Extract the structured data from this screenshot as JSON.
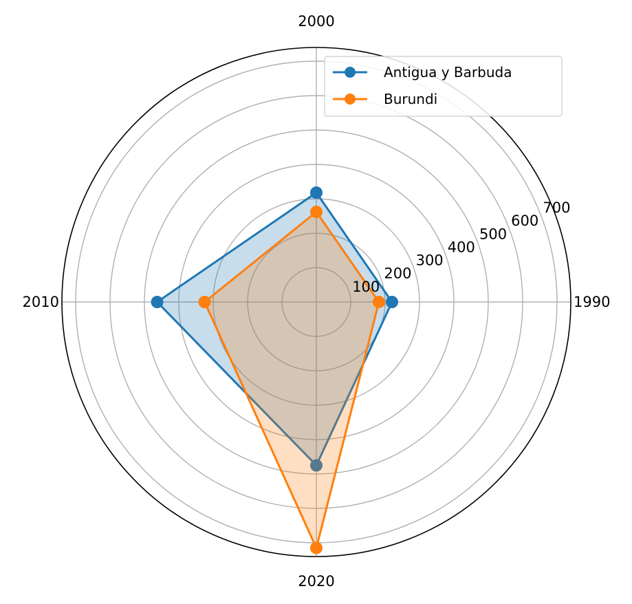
{
  "chart_data": {
    "type": "radar",
    "categories": [
      "1990",
      "2000",
      "2010",
      "2020"
    ],
    "radial_ticks": [
      "100",
      "200",
      "300",
      "400",
      "500",
      "600",
      "700"
    ],
    "rlim": [
      0,
      740
    ],
    "grid": true,
    "legend_position": "top-right",
    "series": [
      {
        "name": "Antigua y Barbuda",
        "color": "#1f77b4",
        "values": [
          220,
          318,
          463,
          475
        ]
      },
      {
        "name": "Burundi",
        "color": "#ff7f0e",
        "values": [
          182,
          262,
          325,
          715
        ]
      }
    ]
  }
}
